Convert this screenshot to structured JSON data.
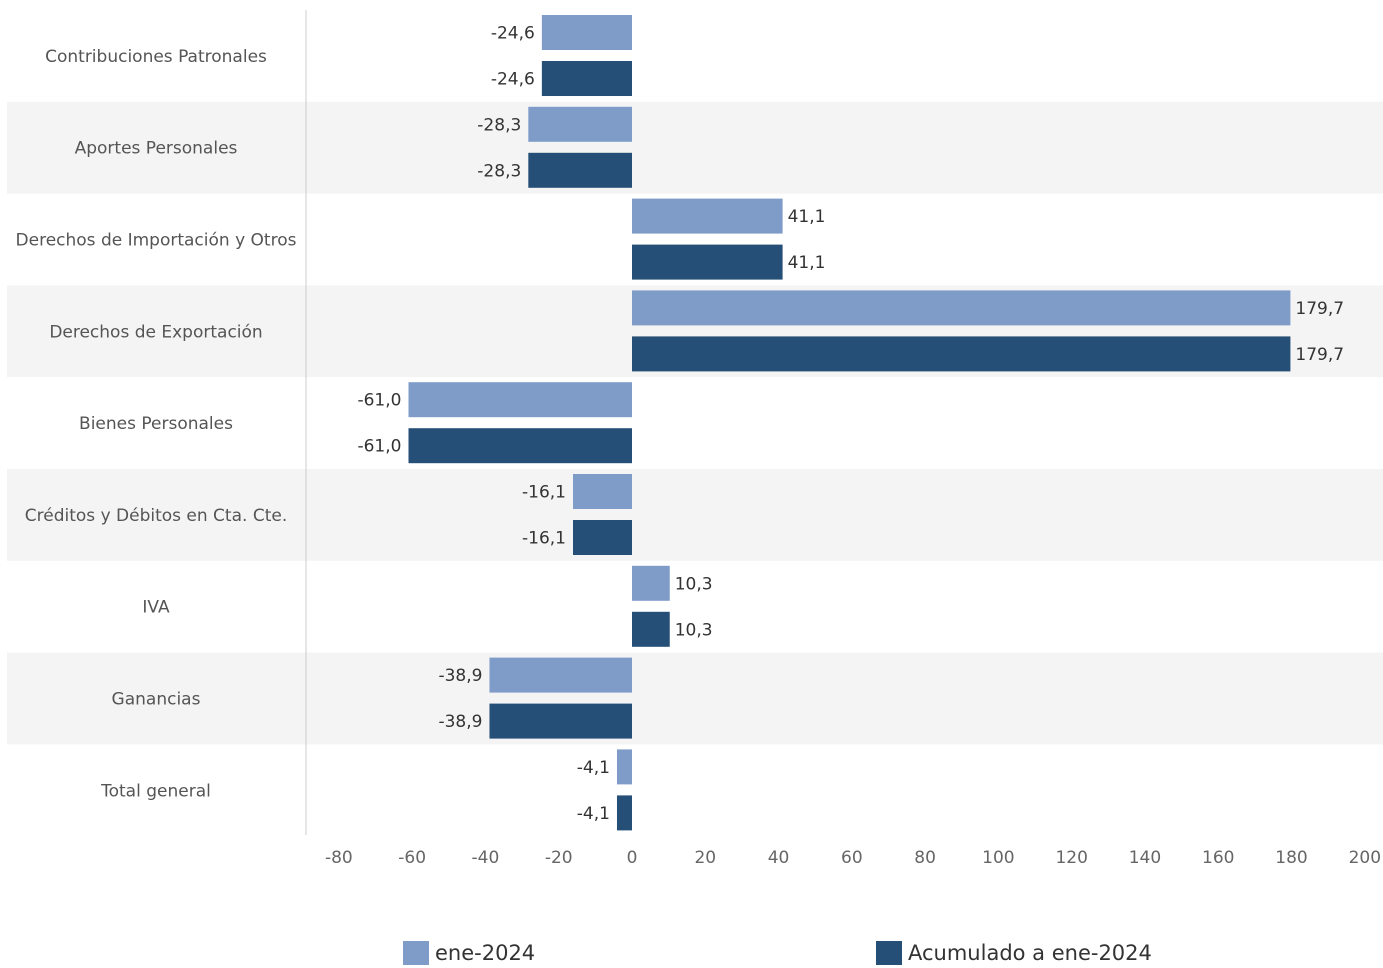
{
  "chart_data": {
    "type": "bar",
    "orientation": "horizontal",
    "categories": [
      "Contribuciones Patronales",
      "Aportes Personales",
      "Derechos de Importación y Otros",
      "Derechos de Exportación",
      "Bienes Personales",
      "Créditos y Débitos en Cta. Cte.",
      "IVA",
      "Ganancias",
      "Total general"
    ],
    "series": [
      {
        "name": "ene-2024",
        "color": "#7f9cc9",
        "values": [
          -24.6,
          -28.3,
          41.1,
          179.7,
          -61.0,
          -16.1,
          10.3,
          -38.9,
          -4.1
        ],
        "labels": [
          "-24,6",
          "-28,3",
          "41,1",
          "179,7",
          "-61,0",
          "-16,1",
          "10,3",
          "-38,9",
          "-4,1"
        ]
      },
      {
        "name": "Acumulado a ene-2024",
        "color": "#254f77",
        "values": [
          -24.6,
          -28.3,
          41.1,
          179.7,
          -61.0,
          -16.1,
          10.3,
          -38.9,
          -4.1
        ],
        "labels": [
          "-24,6",
          "-28,3",
          "41,1",
          "179,7",
          "-61,0",
          "-16,1",
          "10,3",
          "-38,9",
          "-4,1"
        ]
      }
    ],
    "xlim": [
      -80,
      200
    ],
    "xticks": [
      -80,
      -60,
      -40,
      -20,
      0,
      20,
      40,
      60,
      80,
      100,
      120,
      140,
      160,
      180,
      200
    ],
    "band_color": "#f4f4f4",
    "legend_position": "bottom"
  },
  "legend": {
    "series1_label": "ene-2024",
    "series2_label": "Acumulado a ene-2024"
  }
}
